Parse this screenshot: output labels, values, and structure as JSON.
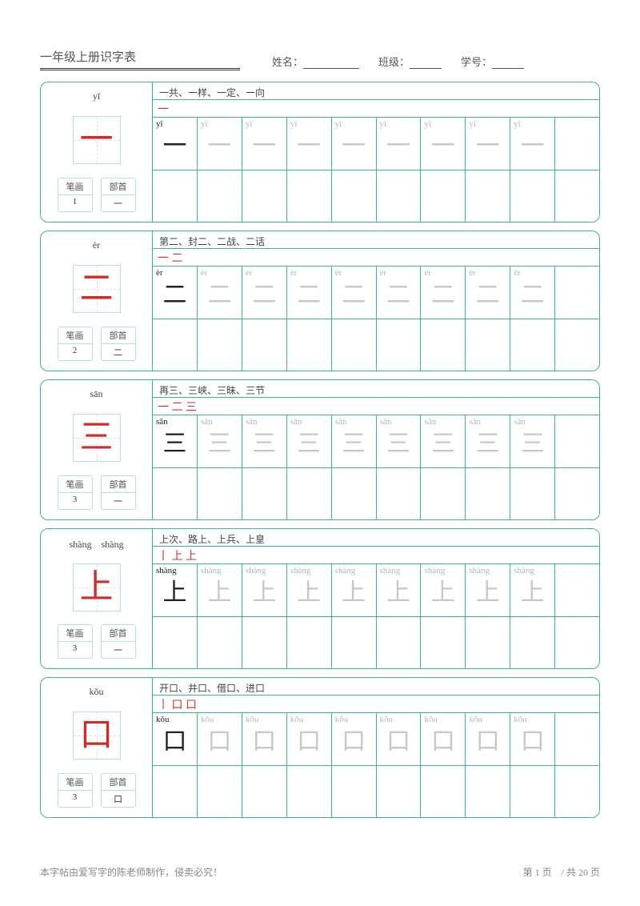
{
  "header": {
    "title": "一年级上册识字表",
    "fields": [
      {
        "label": "姓名：",
        "width": "long"
      },
      {
        "label": "班级：",
        "width": "short"
      },
      {
        "label": "学号：",
        "width": "short"
      }
    ]
  },
  "meta_labels": {
    "strokes": "笔画",
    "radical": "部首"
  },
  "colors": {
    "border": "#3fb58f",
    "grid_line": "#57bc9b",
    "char_red": "#d02a2a",
    "trace_gray": "#c8c8c8"
  },
  "grid": {
    "cols": 10,
    "dark_count": 1,
    "light_count": 8
  },
  "cards": [
    {
      "pinyin": "yī",
      "pinyin_top": "yī",
      "char": "一",
      "strokes": "1",
      "radical": "一",
      "words": "一共、一样、一定、一向",
      "stroke_order": "一"
    },
    {
      "pinyin": "èr",
      "pinyin_top": "èr",
      "char": "二",
      "strokes": "2",
      "radical": "二",
      "words": "第二、封二、二战、二话",
      "stroke_order": "一 二"
    },
    {
      "pinyin": "sān",
      "pinyin_top": "sān",
      "char": "三",
      "strokes": "3",
      "radical": "一",
      "words": "再三、三峡、三昧、三节",
      "stroke_order": "一 二 三"
    },
    {
      "pinyin": "shàng",
      "pinyin_top": "shàng　shàng",
      "char": "上",
      "strokes": "3",
      "radical": "一",
      "words": "上次、路上、上兵、上皇",
      "stroke_order": "丨 上 上"
    },
    {
      "pinyin": "kǒu",
      "pinyin_top": "kǒu",
      "char": "口",
      "strokes": "3",
      "radical": "口",
      "words": "开口、井口、借口、进口",
      "stroke_order": "丨 口 口"
    }
  ],
  "footer": {
    "left": "本字帖由爱写字的陈老师制作，侵卖必究！",
    "right": "第 1 页　/ 共 20 页"
  }
}
